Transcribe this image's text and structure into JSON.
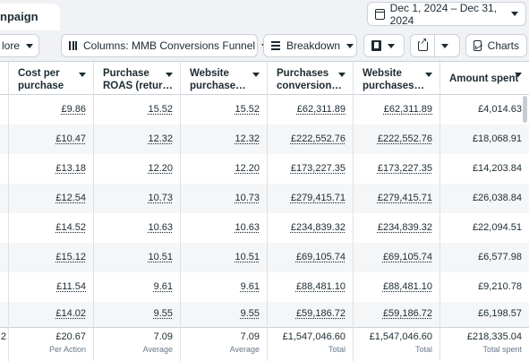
{
  "tab": {
    "label": "npaign"
  },
  "date_range": {
    "label": "Dec 1, 2024 – Dec 31, 2024"
  },
  "toolbar": {
    "more_label": "lore",
    "columns_label": "Columns: MMB Conversions Funnel",
    "breakdown_label": "Breakdown",
    "charts_label": "Charts"
  },
  "columns": [
    {
      "line1": "Cost per",
      "line2": "purchase"
    },
    {
      "line1": "Purchase",
      "line2": "ROAS (retur…"
    },
    {
      "line1": "Website",
      "line2": "purchase…"
    },
    {
      "line1": "Purchases",
      "line2": "conversion…"
    },
    {
      "line1": "Website",
      "line2": "purchases…"
    },
    {
      "line1": "Amount spent",
      "line2": ""
    }
  ],
  "rows": [
    [
      "£9.86",
      "15.52",
      "15.52",
      "£62,311.89",
      "£62,311.89",
      "£4,014.63"
    ],
    [
      "£10.47",
      "12.32",
      "12.32",
      "£222,552.76",
      "£222,552.76",
      "£18,068.91"
    ],
    [
      "£13.18",
      "12.20",
      "12.20",
      "£173,227.35",
      "£173,227.35",
      "£14,203.84"
    ],
    [
      "£12.54",
      "10.73",
      "10.73",
      "£279,415.71",
      "£279,415.71",
      "£26,038.84"
    ],
    [
      "£14.52",
      "10.63",
      "10.63",
      "£234,839.32",
      "£234,839.32",
      "£22,094.51"
    ],
    [
      "£15.12",
      "10.51",
      "10.51",
      "£69,105.74",
      "£69,105.74",
      "£6,577.98"
    ],
    [
      "£11.54",
      "9.61",
      "9.61",
      "£88,481.10",
      "£88,481.10",
      "£9,210.78"
    ],
    [
      "£14.02",
      "9.55",
      "9.55",
      "£59,186.72",
      "£59,186.72",
      "£6,198.57"
    ]
  ],
  "totals": {
    "left_fragment": "2",
    "values": [
      "£20.67",
      "7.09",
      "7.09",
      "£1,547,046.60",
      "£1,547,046.60",
      "£218,335.04"
    ],
    "labels": [
      "Per Action",
      "Average",
      "Average",
      "Total",
      "Total",
      "Total spent"
    ]
  }
}
